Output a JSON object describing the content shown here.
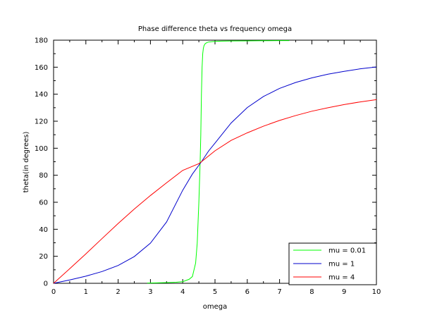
{
  "chart_data": {
    "type": "line",
    "title": "Phase difference theta vs frequency omega",
    "xlabel": "omega",
    "ylabel": "theta(in degrees)",
    "xlim": [
      0,
      10
    ],
    "ylim": [
      0,
      180
    ],
    "x_ticks": [
      0,
      1,
      2,
      3,
      4,
      5,
      6,
      7,
      8,
      9,
      10
    ],
    "y_ticks": [
      0,
      20,
      40,
      60,
      80,
      100,
      120,
      140,
      160,
      180
    ],
    "grid": false,
    "legend_position": "bottom-right",
    "series": [
      {
        "name": "mu = 0.01",
        "color": "#00ff00",
        "x": [
          2.9,
          3.2,
          3.5,
          3.8,
          4.0,
          4.2,
          4.3,
          4.4,
          4.45,
          4.5,
          4.52,
          4.54,
          4.56,
          4.58,
          4.6,
          4.62,
          4.64,
          4.66,
          4.7,
          4.75,
          4.8,
          4.9,
          5.0,
          5.2,
          5.5,
          6.0,
          6.5,
          7.0,
          7.3
        ],
        "y": [
          0.2,
          0.3,
          0.5,
          0.8,
          1.2,
          3,
          5,
          15,
          30,
          60,
          75,
          90,
          110,
          140,
          160,
          170,
          174,
          176,
          177.5,
          178.2,
          178.6,
          178.9,
          179.1,
          179.3,
          179.4,
          179.5,
          179.6,
          179.7,
          179.7
        ]
      },
      {
        "name": "mu = 1",
        "color": "#0000cc",
        "x": [
          0,
          0.5,
          1.0,
          1.5,
          2.0,
          2.5,
          3.0,
          3.5,
          4.0,
          4.3,
          4.58,
          4.8,
          5.0,
          5.5,
          6.0,
          6.5,
          7.0,
          7.5,
          8.0,
          8.5,
          9.0,
          9.5,
          10.0
        ],
        "y": [
          0,
          2.5,
          5.3,
          8.7,
          13.2,
          19.8,
          29.7,
          45.4,
          68.9,
          80.9,
          90,
          97.9,
          103.8,
          118.7,
          130.1,
          138.3,
          144.3,
          148.7,
          152.1,
          154.8,
          156.9,
          158.8,
          160.2
        ]
      },
      {
        "name": "mu = 4",
        "color": "#ff0000",
        "x": [
          0,
          0.5,
          1.0,
          1.5,
          2.0,
          2.5,
          3.0,
          3.5,
          4.0,
          4.5,
          4.58,
          5.0,
          5.5,
          6.0,
          6.5,
          7.0,
          7.5,
          8.0,
          8.5,
          9.0,
          9.5,
          10.0
        ],
        "y": [
          0,
          10.8,
          21.8,
          33.1,
          44.3,
          55.0,
          65.0,
          74.4,
          83.6,
          88.6,
          90,
          98.1,
          105.8,
          111.4,
          116.3,
          120.6,
          124.2,
          127.4,
          130.0,
          132.3,
          134.3,
          136.0
        ]
      }
    ]
  }
}
